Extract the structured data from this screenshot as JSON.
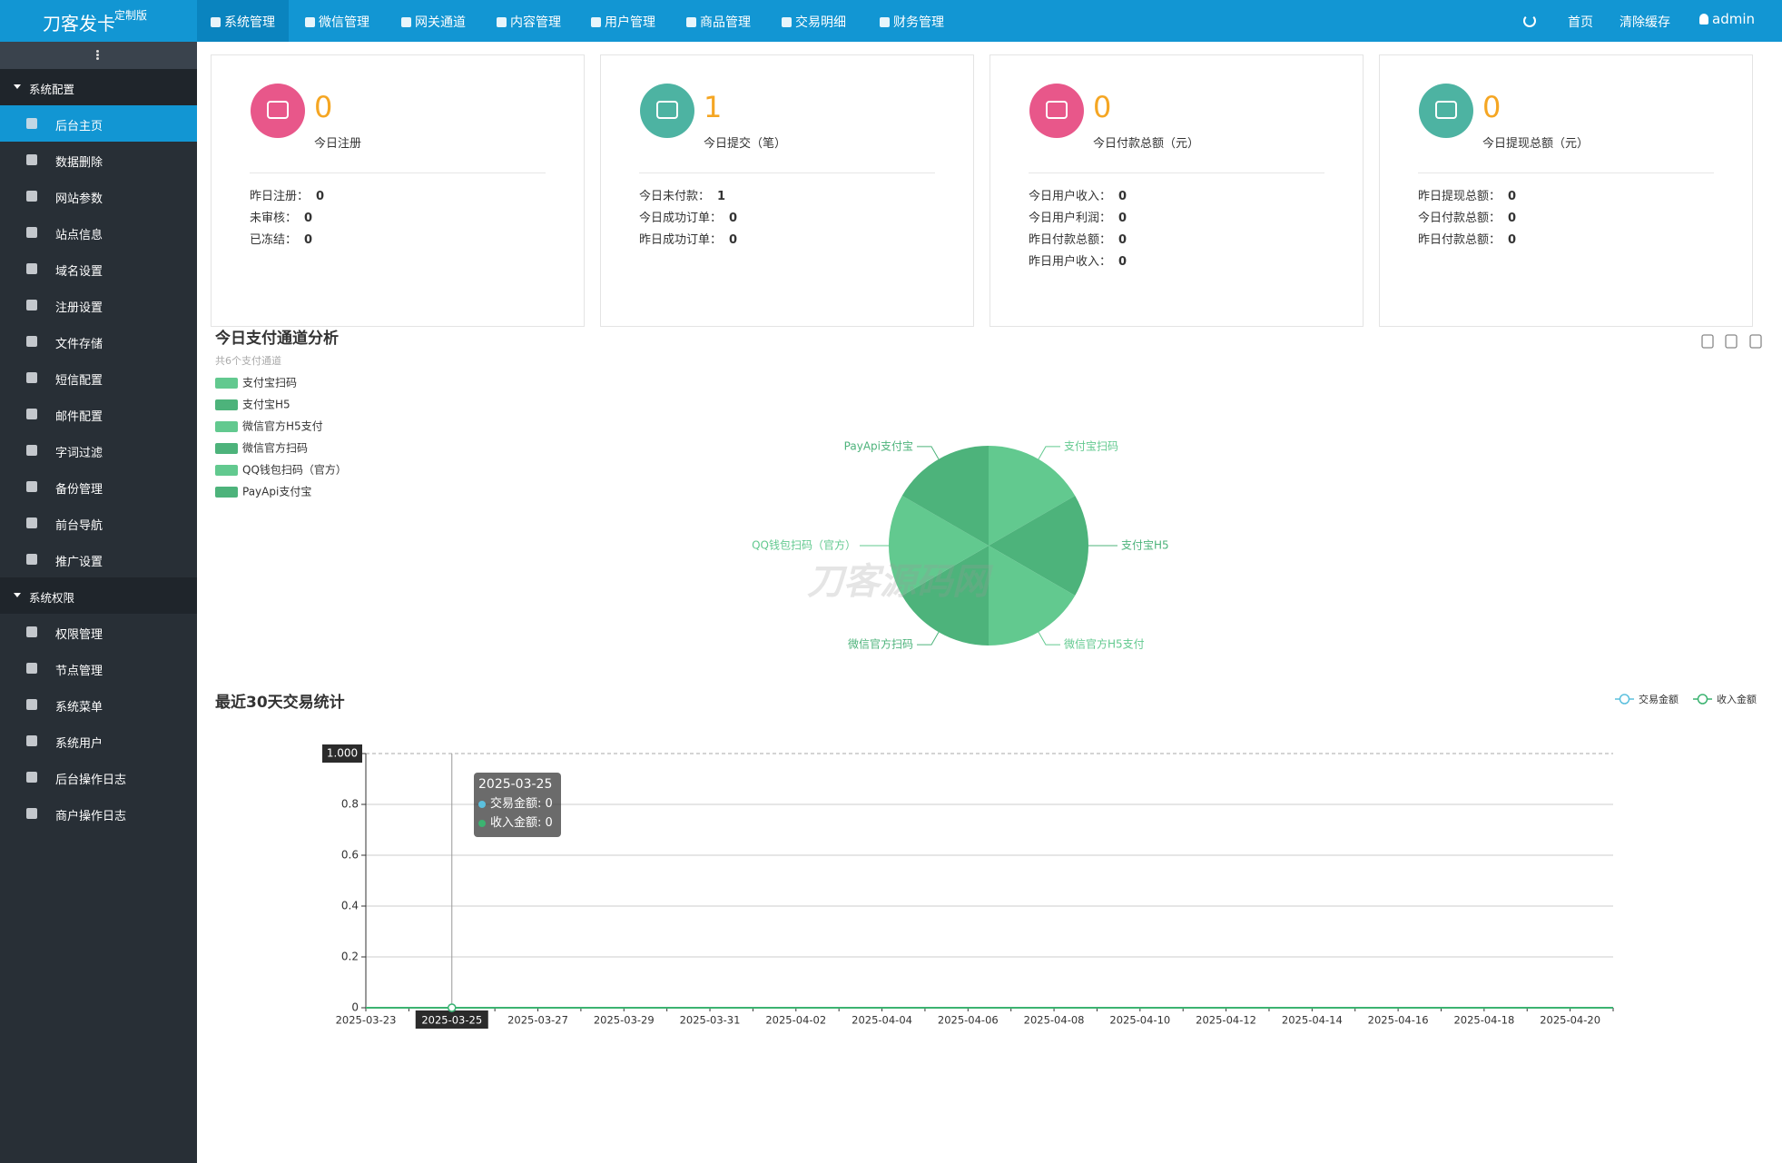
{
  "header": {
    "brand": "刀客发卡",
    "badge": "定制版",
    "nav": [
      "系统管理",
      "微信管理",
      "网关通道",
      "内容管理",
      "用户管理",
      "商品管理",
      "交易明细",
      "财务管理"
    ],
    "links": [
      "首页",
      "清除缓存"
    ],
    "user": "admin"
  },
  "sidebar": {
    "groups": [
      {
        "title": "系统配置",
        "items": [
          "后台主页",
          "数据删除",
          "网站参数",
          "站点信息",
          "域名设置",
          "注册设置",
          "文件存储",
          "短信配置",
          "邮件配置",
          "字词过滤",
          "备份管理",
          "前台导航",
          "推广设置"
        ]
      },
      {
        "title": "系统权限",
        "items": [
          "权限管理",
          "节点管理",
          "系统菜单",
          "系统用户",
          "后台操作日志",
          "商户操作日志"
        ]
      }
    ]
  },
  "stats": [
    {
      "value": 0,
      "label": "今日注册",
      "details": [
        {
          "label": "昨日注册：",
          "value": 0
        },
        {
          "label": "未审核：",
          "value": 0
        },
        {
          "label": "已冻结：",
          "value": 0
        }
      ]
    },
    {
      "value": 1,
      "label": "今日提交（笔）",
      "details": [
        {
          "label": "今日未付款：",
          "value": 1
        },
        {
          "label": "今日成功订单：",
          "value": 0
        },
        {
          "label": "昨日成功订单：",
          "value": 0
        }
      ]
    },
    {
      "value": 0,
      "label": "今日付款总额（元）",
      "details": [
        {
          "label": "今日用户收入：",
          "value": 0
        },
        {
          "label": "今日用户利润：",
          "value": 0
        },
        {
          "label": "昨日付款总额：",
          "value": 0
        },
        {
          "label": "昨日用户收入：",
          "value": 0
        }
      ]
    },
    {
      "value": 0,
      "label": "今日提现总额（元）",
      "details": [
        {
          "label": "昨日提现总额：",
          "value": 0
        },
        {
          "label": "今日付款总额：",
          "value": 0
        },
        {
          "label": "昨日付款总额：",
          "value": 0
        }
      ]
    }
  ],
  "watermark": "刀客源码网",
  "chart_data": [
    {
      "type": "pie",
      "title": "今日支付通道分析",
      "subtitle": "共6个支付通道",
      "categories": [
        "支付宝扫码",
        "支付宝H5",
        "微信官方H5支付",
        "微信官方扫码",
        "QQ钱包扫码（官方）",
        "PayApi支付宝"
      ],
      "values": [
        1,
        1,
        1,
        1,
        1,
        1
      ],
      "colors": [
        "#62c98f",
        "#4db37b",
        "#62c98f",
        "#4db37b",
        "#62c98f",
        "#4db37b"
      ]
    },
    {
      "type": "line",
      "title": "最近30天交易统计",
      "categories": [
        "2025-03-23",
        null,
        "2025-03-25",
        null,
        "2025-03-27",
        null,
        "2025-03-29",
        null,
        "2025-03-31",
        null,
        "2025-04-02",
        null,
        "2025-04-04",
        null,
        "2025-04-06",
        null,
        "2025-04-08",
        null,
        "2025-04-10",
        null,
        "2025-04-12",
        null,
        "2025-04-14",
        null,
        "2025-04-16",
        null,
        "2025-04-18",
        null,
        "2025-04-20",
        null
      ],
      "series": [
        {
          "name": "交易金额",
          "color": "#5bc0de",
          "values": [
            0,
            0,
            0,
            0,
            0,
            0,
            0,
            0,
            0,
            0,
            0,
            0,
            0,
            0,
            0,
            0,
            0,
            0,
            0,
            0,
            0,
            0,
            0,
            0,
            0,
            0,
            0,
            0,
            0,
            0
          ]
        },
        {
          "name": "收入金额",
          "color": "#3cb371",
          "values": [
            0,
            0,
            0,
            0,
            0,
            0,
            0,
            0,
            0,
            0,
            0,
            0,
            0,
            0,
            0,
            0,
            0,
            0,
            0,
            0,
            0,
            0,
            0,
            0,
            0,
            0,
            0,
            0,
            0,
            0
          ]
        }
      ],
      "ylim": [
        0,
        1
      ],
      "yticks": [
        0,
        0.2,
        0.4,
        0.6,
        0.8,
        {
          "value": 1,
          "label": "1.000"
        }
      ],
      "grid": true
    }
  ]
}
